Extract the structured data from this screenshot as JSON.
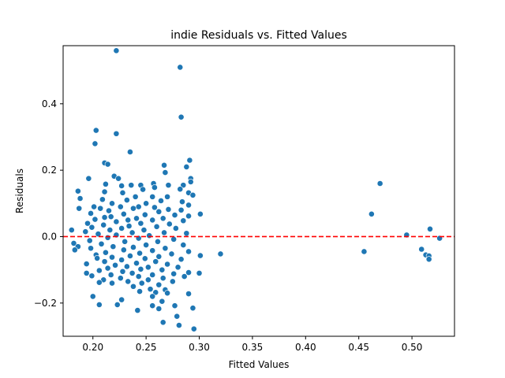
{
  "chart_data": {
    "type": "scatter",
    "title": "indie Residuals vs. Fitted Values",
    "xlabel": "Fitted Values",
    "ylabel": "Residuals",
    "xlim": [
      0.172,
      0.54
    ],
    "ylim": [
      -0.3,
      0.575
    ],
    "xticks": [
      0.2,
      0.25,
      0.3,
      0.35,
      0.4,
      0.45,
      0.5
    ],
    "xtick_labels": [
      "0.20",
      "0.25",
      "0.30",
      "0.35",
      "0.40",
      "0.45",
      "0.50"
    ],
    "yticks": [
      -0.2,
      0.0,
      0.2,
      0.4
    ],
    "ytick_labels": [
      "−0.2",
      "0.0",
      "0.2",
      "0.4"
    ],
    "grid": false,
    "reference_line": {
      "y": 0.0,
      "style": "dashed",
      "color": "#ff0000"
    },
    "marker_color": "#1f77b4",
    "series": [
      {
        "points": [
          [
            0.222,
            0.56
          ],
          [
            0.282,
            0.51
          ],
          [
            0.283,
            0.36
          ],
          [
            0.203,
            0.32
          ],
          [
            0.222,
            0.31
          ],
          [
            0.202,
            0.28
          ],
          [
            0.235,
            0.255
          ],
          [
            0.291,
            0.23
          ],
          [
            0.267,
            0.215
          ],
          [
            0.211,
            0.222
          ],
          [
            0.214,
            0.218
          ],
          [
            0.288,
            0.21
          ],
          [
            0.268,
            0.193
          ],
          [
            0.22,
            0.182
          ],
          [
            0.196,
            0.175
          ],
          [
            0.224,
            0.175
          ],
          [
            0.292,
            0.175
          ],
          [
            0.292,
            0.165
          ],
          [
            0.212,
            0.158
          ],
          [
            0.257,
            0.16
          ],
          [
            0.236,
            0.155
          ],
          [
            0.245,
            0.155
          ],
          [
            0.271,
            0.155
          ],
          [
            0.285,
            0.155
          ],
          [
            0.227,
            0.153
          ],
          [
            0.258,
            0.148
          ],
          [
            0.282,
            0.143
          ],
          [
            0.247,
            0.142
          ],
          [
            0.186,
            0.137
          ],
          [
            0.211,
            0.135
          ],
          [
            0.228,
            0.132
          ],
          [
            0.29,
            0.132
          ],
          [
            0.294,
            0.125
          ],
          [
            0.24,
            0.12
          ],
          [
            0.256,
            0.12
          ],
          [
            0.27,
            0.12
          ],
          [
            0.188,
            0.115
          ],
          [
            0.209,
            0.112
          ],
          [
            0.232,
            0.11
          ],
          [
            0.264,
            0.108
          ],
          [
            0.284,
            0.105
          ],
          [
            0.25,
            0.1
          ],
          [
            0.218,
            0.1
          ],
          [
            0.29,
            0.095
          ],
          [
            0.201,
            0.09
          ],
          [
            0.226,
            0.09
          ],
          [
            0.243,
            0.09
          ],
          [
            0.258,
            0.088
          ],
          [
            0.187,
            0.085
          ],
          [
            0.207,
            0.085
          ],
          [
            0.238,
            0.085
          ],
          [
            0.271,
            0.082
          ],
          [
            0.283,
            0.08
          ],
          [
            0.215,
            0.078
          ],
          [
            0.262,
            0.075
          ],
          [
            0.301,
            0.068
          ],
          [
            0.198,
            0.07
          ],
          [
            0.229,
            0.068
          ],
          [
            0.249,
            0.066
          ],
          [
            0.277,
            0.065
          ],
          [
            0.29,
            0.062
          ],
          [
            0.217,
            0.06
          ],
          [
            0.211,
            0.058
          ],
          [
            0.241,
            0.055
          ],
          [
            0.266,
            0.055
          ],
          [
            0.202,
            0.052
          ],
          [
            0.233,
            0.05
          ],
          [
            0.256,
            0.05
          ],
          [
            0.285,
            0.048
          ],
          [
            0.222,
            0.045
          ],
          [
            0.195,
            0.04
          ],
          [
            0.245,
            0.04
          ],
          [
            0.272,
            0.038
          ],
          [
            0.21,
            0.035
          ],
          [
            0.234,
            0.032
          ],
          [
            0.26,
            0.03
          ],
          [
            0.199,
            0.028
          ],
          [
            0.227,
            0.025
          ],
          [
            0.278,
            0.025
          ],
          [
            0.216,
            0.02
          ],
          [
            0.248,
            0.02
          ],
          [
            0.18,
            0.02
          ],
          [
            0.193,
            0.015
          ],
          [
            0.237,
            0.012
          ],
          [
            0.267,
            0.012
          ],
          [
            0.288,
            0.01
          ],
          [
            0.205,
            0.008
          ],
          [
            0.222,
            0.005
          ],
          [
            0.253,
            0.003
          ],
          [
            0.214,
            -0.003
          ],
          [
            0.243,
            -0.005
          ],
          [
            0.276,
            -0.008
          ],
          [
            0.197,
            -0.012
          ],
          [
            0.23,
            -0.015
          ],
          [
            0.261,
            -0.015
          ],
          [
            0.182,
            -0.02
          ],
          [
            0.208,
            -0.022
          ],
          [
            0.25,
            -0.025
          ],
          [
            0.285,
            -0.025
          ],
          [
            0.186,
            -0.03
          ],
          [
            0.219,
            -0.03
          ],
          [
            0.238,
            -0.032
          ],
          [
            0.268,
            -0.035
          ],
          [
            0.198,
            -0.035
          ],
          [
            0.183,
            -0.04
          ],
          [
            0.229,
            -0.04
          ],
          [
            0.256,
            -0.042
          ],
          [
            0.29,
            -0.045
          ],
          [
            0.212,
            -0.048
          ],
          [
            0.244,
            -0.05
          ],
          [
            0.274,
            -0.052
          ],
          [
            0.203,
            -0.055
          ],
          [
            0.301,
            -0.057
          ],
          [
            0.235,
            -0.058
          ],
          [
            0.262,
            -0.06
          ],
          [
            0.218,
            -0.062
          ],
          [
            0.204,
            -0.065
          ],
          [
            0.249,
            -0.066
          ],
          [
            0.283,
            -0.068
          ],
          [
            0.227,
            -0.07
          ],
          [
            0.211,
            -0.075
          ],
          [
            0.259,
            -0.075
          ],
          [
            0.241,
            -0.08
          ],
          [
            0.194,
            -0.082
          ],
          [
            0.27,
            -0.083
          ],
          [
            0.221,
            -0.086
          ],
          [
            0.232,
            -0.09
          ],
          [
            0.252,
            -0.092
          ],
          [
            0.28,
            -0.092
          ],
          [
            0.214,
            -0.095
          ],
          [
            0.245,
            -0.098
          ],
          [
            0.265,
            -0.1
          ],
          [
            0.206,
            -0.102
          ],
          [
            0.228,
            -0.105
          ],
          [
            0.29,
            -0.108
          ],
          [
            0.237,
            -0.11
          ],
          [
            0.194,
            -0.11
          ],
          [
            0.276,
            -0.112
          ],
          [
            0.217,
            -0.115
          ],
          [
            0.256,
            -0.115
          ],
          [
            0.199,
            -0.118
          ],
          [
            0.286,
            -0.12
          ],
          [
            0.243,
            -0.12
          ],
          [
            0.226,
            -0.125
          ],
          [
            0.266,
            -0.125
          ],
          [
            0.21,
            -0.13
          ],
          [
            0.252,
            -0.13
          ],
          [
            0.233,
            -0.135
          ],
          [
            0.275,
            -0.135
          ],
          [
            0.206,
            -0.138
          ],
          [
            0.218,
            -0.14
          ],
          [
            0.246,
            -0.14
          ],
          [
            0.262,
            -0.145
          ],
          [
            0.238,
            -0.15
          ],
          [
            0.254,
            -0.158
          ],
          [
            0.268,
            -0.16
          ],
          [
            0.244,
            -0.165
          ],
          [
            0.259,
            -0.168
          ],
          [
            0.27,
            -0.17
          ],
          [
            0.29,
            -0.172
          ],
          [
            0.2,
            -0.18
          ],
          [
            0.256,
            -0.18
          ],
          [
            0.227,
            -0.19
          ],
          [
            0.265,
            -0.195
          ],
          [
            0.206,
            -0.205
          ],
          [
            0.223,
            -0.205
          ],
          [
            0.256,
            -0.208
          ],
          [
            0.277,
            -0.208
          ],
          [
            0.294,
            -0.215
          ],
          [
            0.262,
            -0.217
          ],
          [
            0.242,
            -0.222
          ],
          [
            0.279,
            -0.24
          ],
          [
            0.266,
            -0.258
          ],
          [
            0.281,
            -0.267
          ],
          [
            0.295,
            -0.278
          ],
          [
            0.3,
            -0.11
          ],
          [
            0.32,
            -0.052
          ],
          [
            0.455,
            -0.045
          ],
          [
            0.462,
            0.068
          ],
          [
            0.47,
            0.16
          ],
          [
            0.495,
            0.005
          ],
          [
            0.509,
            -0.038
          ],
          [
            0.513,
            -0.055
          ],
          [
            0.516,
            -0.058
          ],
          [
            0.516,
            -0.068
          ],
          [
            0.517,
            0.023
          ],
          [
            0.526,
            -0.005
          ]
        ]
      }
    ]
  }
}
